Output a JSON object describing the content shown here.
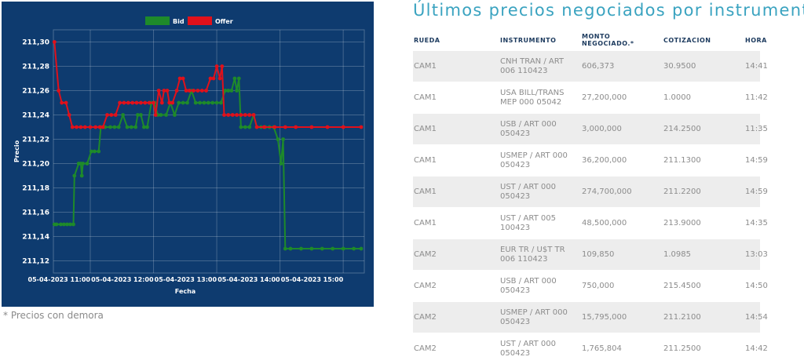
{
  "chart_data": {
    "type": "line",
    "ylabel": "Precio",
    "xlabel": "Fecha",
    "ylim": [
      211.11,
      211.31
    ],
    "yticks": [
      "211,12",
      "211,14",
      "211,16",
      "211,18",
      "211,20",
      "211,22",
      "211,24",
      "211,26",
      "211,28",
      "211,30"
    ],
    "ytick_values": [
      211.12,
      211.14,
      211.16,
      211.18,
      211.2,
      211.22,
      211.24,
      211.26,
      211.28,
      211.3
    ],
    "xlim": [
      "10:25",
      "15:20"
    ],
    "xticks": [
      {
        "label": "05-04-2023 11:00",
        "t": "11:00"
      },
      {
        "label": "05-04-2023 12:00",
        "t": "12:00"
      },
      {
        "label": "05-04-2023 13:00",
        "t": "13:00"
      },
      {
        "label": "05-04-2023 14:00",
        "t": "14:00"
      },
      {
        "label": "05-04-2023 15:00",
        "t": "15:00"
      }
    ],
    "grid": true,
    "legend_position": "top-center",
    "series": [
      {
        "name": "Bid",
        "color": "#1e8a2a",
        "points": [
          [
            "10:26",
            211.15
          ],
          [
            "10:28",
            211.15
          ],
          [
            "10:32",
            211.15
          ],
          [
            "10:35",
            211.15
          ],
          [
            "10:38",
            211.15
          ],
          [
            "10:41",
            211.15
          ],
          [
            "10:44",
            211.15
          ],
          [
            "10:45",
            211.19
          ],
          [
            "10:49",
            211.2
          ],
          [
            "10:51",
            211.2
          ],
          [
            "10:52",
            211.19
          ],
          [
            "10:53",
            211.2
          ],
          [
            "10:57",
            211.2
          ],
          [
            "11:01",
            211.21
          ],
          [
            "11:04",
            211.21
          ],
          [
            "11:08",
            211.21
          ],
          [
            "11:10",
            211.23
          ],
          [
            "11:14",
            211.23
          ],
          [
            "11:19",
            211.23
          ],
          [
            "11:23",
            211.23
          ],
          [
            "11:27",
            211.23
          ],
          [
            "11:31",
            211.24
          ],
          [
            "11:35",
            211.23
          ],
          [
            "11:39",
            211.23
          ],
          [
            "11:43",
            211.23
          ],
          [
            "11:45",
            211.24
          ],
          [
            "11:48",
            211.24
          ],
          [
            "11:51",
            211.23
          ],
          [
            "11:54",
            211.23
          ],
          [
            "11:58",
            211.25
          ],
          [
            "12:01",
            211.25
          ],
          [
            "12:04",
            211.24
          ],
          [
            "12:07",
            211.24
          ],
          [
            "12:12",
            211.24
          ],
          [
            "12:16",
            211.25
          ],
          [
            "12:20",
            211.24
          ],
          [
            "12:24",
            211.25
          ],
          [
            "12:28",
            211.25
          ],
          [
            "12:32",
            211.25
          ],
          [
            "12:36",
            211.26
          ],
          [
            "12:40",
            211.25
          ],
          [
            "12:44",
            211.25
          ],
          [
            "12:48",
            211.25
          ],
          [
            "12:52",
            211.25
          ],
          [
            "12:56",
            211.25
          ],
          [
            "13:00",
            211.25
          ],
          [
            "13:04",
            211.25
          ],
          [
            "13:08",
            211.26
          ],
          [
            "13:11",
            211.26
          ],
          [
            "13:14",
            211.26
          ],
          [
            "13:17",
            211.27
          ],
          [
            "13:19",
            211.26
          ],
          [
            "13:21",
            211.27
          ],
          [
            "13:23",
            211.23
          ],
          [
            "13:27",
            211.23
          ],
          [
            "13:31",
            211.23
          ],
          [
            "13:35",
            211.24
          ],
          [
            "13:38",
            211.23
          ],
          [
            "13:42",
            211.23
          ],
          [
            "13:46",
            211.23
          ],
          [
            "13:50",
            211.23
          ],
          [
            "13:54",
            211.23
          ],
          [
            "13:58",
            211.22
          ],
          [
            "14:01",
            211.2
          ],
          [
            "14:03",
            211.22
          ],
          [
            "14:05",
            211.13
          ],
          [
            "14:10",
            211.13
          ],
          [
            "14:20",
            211.13
          ],
          [
            "14:30",
            211.13
          ],
          [
            "14:40",
            211.13
          ],
          [
            "14:50",
            211.13
          ],
          [
            "15:00",
            211.13
          ],
          [
            "15:10",
            211.13
          ],
          [
            "15:17",
            211.13
          ]
        ]
      },
      {
        "name": "Offer",
        "color": "#e0111b",
        "points": [
          [
            "10:26",
            211.3
          ],
          [
            "10:30",
            211.26
          ],
          [
            "10:33",
            211.25
          ],
          [
            "10:37",
            211.25
          ],
          [
            "10:40",
            211.24
          ],
          [
            "10:43",
            211.23
          ],
          [
            "10:47",
            211.23
          ],
          [
            "10:51",
            211.23
          ],
          [
            "10:55",
            211.23
          ],
          [
            "11:00",
            211.23
          ],
          [
            "11:05",
            211.23
          ],
          [
            "11:09",
            211.23
          ],
          [
            "11:12",
            211.23
          ],
          [
            "11:16",
            211.24
          ],
          [
            "11:20",
            211.24
          ],
          [
            "11:24",
            211.24
          ],
          [
            "11:28",
            211.25
          ],
          [
            "11:32",
            211.25
          ],
          [
            "11:36",
            211.25
          ],
          [
            "11:40",
            211.25
          ],
          [
            "11:44",
            211.25
          ],
          [
            "11:48",
            211.25
          ],
          [
            "11:52",
            211.25
          ],
          [
            "11:56",
            211.25
          ],
          [
            "12:00",
            211.25
          ],
          [
            "12:02",
            211.24
          ],
          [
            "12:05",
            211.26
          ],
          [
            "12:08",
            211.25
          ],
          [
            "12:10",
            211.26
          ],
          [
            "12:13",
            211.26
          ],
          [
            "12:15",
            211.25
          ],
          [
            "12:18",
            211.25
          ],
          [
            "12:22",
            211.26
          ],
          [
            "12:25",
            211.27
          ],
          [
            "12:28",
            211.27
          ],
          [
            "12:31",
            211.26
          ],
          [
            "12:34",
            211.26
          ],
          [
            "12:38",
            211.26
          ],
          [
            "12:42",
            211.26
          ],
          [
            "12:46",
            211.26
          ],
          [
            "12:50",
            211.26
          ],
          [
            "12:54",
            211.27
          ],
          [
            "12:57",
            211.27
          ],
          [
            "13:00",
            211.28
          ],
          [
            "13:03",
            211.27
          ],
          [
            "13:05",
            211.28
          ],
          [
            "13:07",
            211.24
          ],
          [
            "13:11",
            211.24
          ],
          [
            "13:15",
            211.24
          ],
          [
            "13:19",
            211.24
          ],
          [
            "13:23",
            211.24
          ],
          [
            "13:27",
            211.24
          ],
          [
            "13:31",
            211.24
          ],
          [
            "13:35",
            211.24
          ],
          [
            "13:38",
            211.23
          ],
          [
            "13:45",
            211.23
          ],
          [
            "13:55",
            211.23
          ],
          [
            "14:05",
            211.23
          ],
          [
            "14:15",
            211.23
          ],
          [
            "14:30",
            211.23
          ],
          [
            "14:45",
            211.23
          ],
          [
            "15:00",
            211.23
          ],
          [
            "15:17",
            211.23
          ]
        ]
      }
    ]
  },
  "note": "* Precios con demora",
  "title": "Últimos precios negociados por instrumento",
  "table": {
    "headers": [
      "RUEDA",
      "INSTRUMENTO",
      "MONTO NEGOCIADO.*",
      "COTIZACION",
      "HORA"
    ],
    "rows": [
      {
        "rueda": "CAM1",
        "instrumento": "CNH TRAN / ART 006 110423",
        "monto": "606,373",
        "cotizacion": "30.9500",
        "hora": "14:41"
      },
      {
        "rueda": "CAM1",
        "instrumento": "USA BILL/TRANS MEP 000 05042",
        "monto": "27,200,000",
        "cotizacion": "1.0000",
        "hora": "11:42"
      },
      {
        "rueda": "CAM1",
        "instrumento": "USB / ART 000 050423",
        "monto": "3,000,000",
        "cotizacion": "214.2500",
        "hora": "11:35"
      },
      {
        "rueda": "CAM1",
        "instrumento": "USMEP / ART 000 050423",
        "monto": "36,200,000",
        "cotizacion": "211.1300",
        "hora": "14:59"
      },
      {
        "rueda": "CAM1",
        "instrumento": "UST / ART 000 050423",
        "monto": "274,700,000",
        "cotizacion": "211.2200",
        "hora": "14:59"
      },
      {
        "rueda": "CAM1",
        "instrumento": "UST / ART 005 100423",
        "monto": "48,500,000",
        "cotizacion": "213.9000",
        "hora": "14:35"
      },
      {
        "rueda": "CAM2",
        "instrumento": "EUR TR / U$T TR 006 110423",
        "monto": "109,850",
        "cotizacion": "1.0985",
        "hora": "13:03"
      },
      {
        "rueda": "CAM2",
        "instrumento": "USB / ART 000 050423",
        "monto": "750,000",
        "cotizacion": "215.4500",
        "hora": "14:50"
      },
      {
        "rueda": "CAM2",
        "instrumento": "USMEP / ART 000 050423",
        "monto": "15,795,000",
        "cotizacion": "211.2100",
        "hora": "14:54"
      },
      {
        "rueda": "CAM2",
        "instrumento": "UST / ART 000 050423",
        "monto": "1,765,804",
        "cotizacion": "211.2500",
        "hora": "14:42"
      }
    ]
  }
}
